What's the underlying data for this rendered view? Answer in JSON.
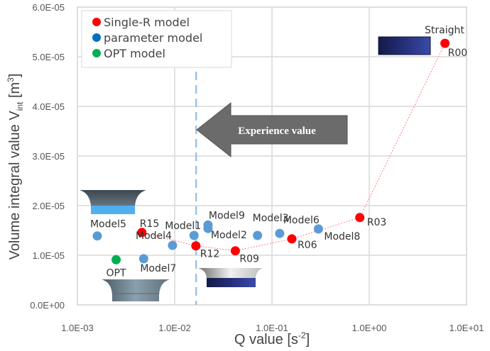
{
  "chart_data": {
    "type": "scatter",
    "title": "",
    "xlabel": "Q value [s",
    "xlabel_sup": "-2",
    "xlabel_end": "]",
    "ylabel": "Volume integral value V",
    "ylabel_sub": "int",
    "ylabel_unit": " [m",
    "ylabel_sup": "3",
    "ylabel_end": "]",
    "xscale": "log",
    "xlim": [
      0.001,
      10
    ],
    "ylim": [
      0,
      6e-05
    ],
    "xticks": [
      0.001,
      0.01,
      0.1,
      1,
      10
    ],
    "xtick_labels": [
      "1.0E-03",
      "1.0E-02",
      "1.0E-01",
      "1.0E+00",
      "1.0E+01"
    ],
    "yticks": [
      0,
      1e-05,
      2e-05,
      3e-05,
      4e-05,
      5e-05,
      6e-05
    ],
    "ytick_labels": [
      "0.0E+00",
      "1.0E-05",
      "2.0E-05",
      "3.0E-05",
      "4.0E-05",
      "5.0E-05",
      "6.0E-05"
    ],
    "grid": true,
    "legend_position": "top-left",
    "series": [
      {
        "name": "Single-R model",
        "color": "#ff0000",
        "connected": true,
        "points": [
          {
            "label": "R15",
            "x": 0.0046,
            "y": 1.46e-05
          },
          {
            "label": "R12",
            "x": 0.0165,
            "y": 1.19e-05
          },
          {
            "label": "R09",
            "x": 0.042,
            "y": 1.09e-05
          },
          {
            "label": "R06",
            "x": 0.16,
            "y": 1.33e-05
          },
          {
            "label": "R03",
            "x": 0.8,
            "y": 1.76e-05
          },
          {
            "label": "R00",
            "x": 6.0,
            "y": 5.27e-05
          }
        ]
      },
      {
        "name": "parameter model",
        "color": "#5b9bd5",
        "connected": false,
        "points": [
          {
            "label": "Model5",
            "x": 0.0016,
            "y": 1.39e-05
          },
          {
            "label": "Model7",
            "x": 0.0048,
            "y": 9.3e-06
          },
          {
            "label": "Model4",
            "x": 0.0095,
            "y": 1.2e-05
          },
          {
            "label": "Model1",
            "x": 0.0158,
            "y": 1.4e-05
          },
          {
            "label": "Model9",
            "x": 0.022,
            "y": 1.61e-05
          },
          {
            "label": "Model2",
            "x": 0.022,
            "y": 1.54e-05
          },
          {
            "label": "Model3",
            "x": 0.071,
            "y": 1.4e-05
          },
          {
            "label": "Model6",
            "x": 0.12,
            "y": 1.44e-05
          },
          {
            "label": "Model8",
            "x": 0.3,
            "y": 1.53e-05
          }
        ]
      },
      {
        "name": "OPT model",
        "color": "#00b050",
        "connected": false,
        "points": [
          {
            "label": "OPT",
            "x": 0.0025,
            "y": 9.1e-06
          }
        ]
      }
    ],
    "legend_colors": [
      "#ff0000",
      "#0070c0",
      "#00b050"
    ],
    "annotations": {
      "straight_label": "Straight",
      "experience_value_text": "Experience value",
      "experience_value_x": 0.0166,
      "experience_line_color": "#9dc3e6"
    }
  }
}
